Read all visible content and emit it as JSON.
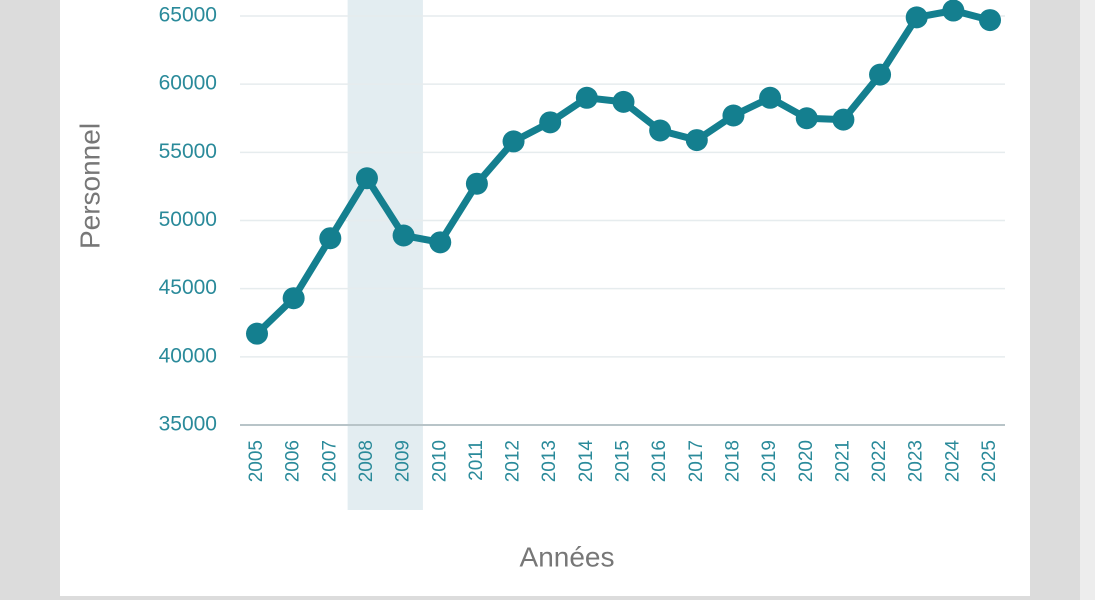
{
  "chart_data": {
    "type": "line",
    "x_label": "Années",
    "y_label": "Personnel",
    "categories": [
      "2005",
      "2006",
      "2007",
      "2008",
      "2009",
      "2010",
      "2011",
      "2012",
      "2013",
      "2014",
      "2015",
      "2016",
      "2017",
      "2018",
      "2019",
      "2020",
      "2021",
      "2022",
      "2023",
      "2024",
      "2025"
    ],
    "series": [
      {
        "name": "Personnel",
        "color": "#147f8f",
        "values": [
          41700,
          44300,
          48700,
          53100,
          48900,
          48400,
          52700,
          55800,
          57200,
          59000,
          58700,
          56600,
          55900,
          57700,
          59000,
          57500,
          57400,
          60700,
          64900,
          65400,
          64700
        ]
      }
    ],
    "ylim": [
      35000,
      66000
    ],
    "yticks": [
      35000,
      40000,
      45000,
      50000,
      55000,
      60000,
      65000
    ],
    "grid": true,
    "highlight": [
      "2008",
      "2009"
    ]
  }
}
